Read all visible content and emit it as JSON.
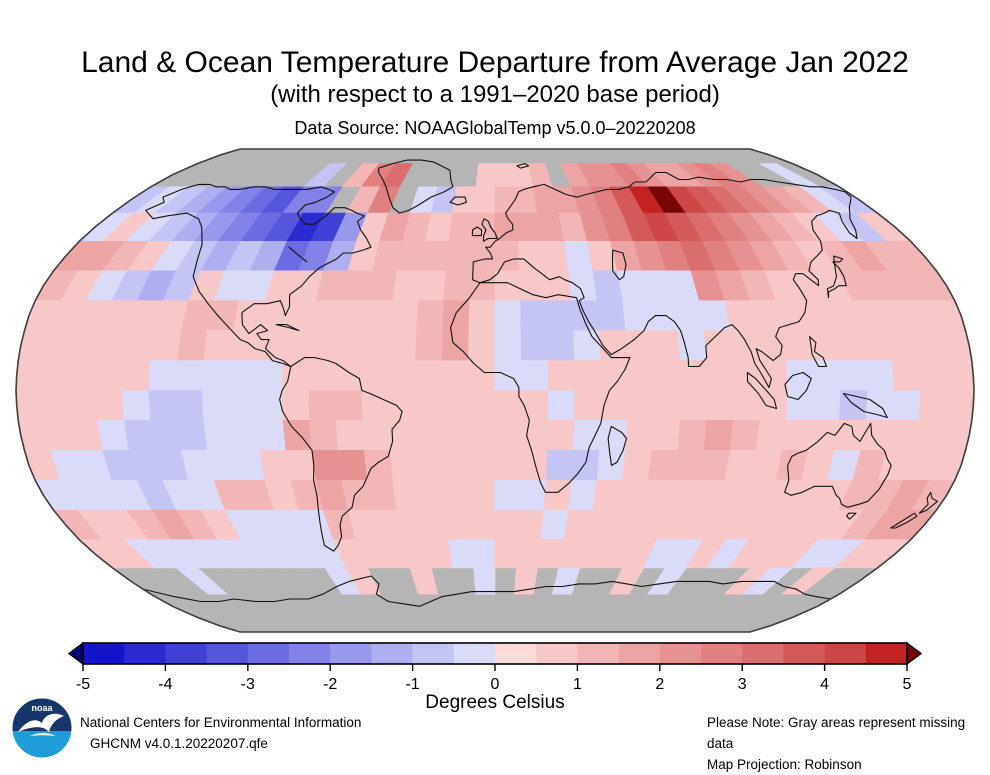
{
  "header": {
    "title": "Land & Ocean Temperature Departure from Average Jan 2022",
    "subtitle": "(with respect to a 1991–2020 base period)",
    "datasource": "Data Source: NOAAGlobalTemp v5.0.0–20220208"
  },
  "colorbar": {
    "label": "Degrees Celsius",
    "ticks": [
      "-5",
      "-4",
      "-3",
      "-2",
      "-1",
      "0",
      "1",
      "2",
      "3",
      "4",
      "5"
    ],
    "tick_values": [
      -5,
      -4,
      -3,
      -2,
      -1,
      0,
      1,
      2,
      3,
      4,
      5
    ],
    "segments": [
      "#1414c8",
      "#2a2ad0",
      "#4040d6",
      "#5656dc",
      "#6c6ce2",
      "#8282e8",
      "#9898ec",
      "#aeaef1",
      "#c4c4f5",
      "#dadaf9",
      "#fbdada",
      "#f8c8c8",
      "#f3b6b6",
      "#eda4a4",
      "#e79292",
      "#e18080",
      "#da6d6d",
      "#d45a5a",
      "#cd4747",
      "#c32222"
    ],
    "left_arrow": "#000078",
    "right_arrow": "#780606"
  },
  "map": {
    "missing_color": "#b5b5b5",
    "outline_color": "#3c3c3c",
    "coast_color": "#111111"
  },
  "footer": {
    "org": "National Centers for Environmental Information",
    "dataset": "GHCNM v4.0.1.20220207.qfe",
    "note": "Please Note: Gray areas represent missing data",
    "projection": "Map Projection: Robinson",
    "logo": {
      "text": "noaa",
      "top_color": "#16356b",
      "bottom_color": "#1e9cd8"
    }
  },
  "chart_data": {
    "type": "heatmap",
    "title": "Land & Ocean Temperature Departure from Average Jan 2022",
    "subtitle": "(with respect to a 1991–2020 base period)",
    "units": "Degrees Celsius",
    "projection": "Robinson",
    "legend_position": "bottom",
    "colorscale": {
      "min": -5,
      "max": 5,
      "step": 0.5,
      "missing": "gray"
    },
    "lat_centers": [
      85,
      75,
      65,
      55,
      45,
      35,
      25,
      15,
      5,
      -5,
      -15,
      -25,
      -35,
      -45,
      -55,
      -65,
      -75,
      -85
    ],
    "lon_start": -180,
    "cell_deg": 10,
    "values": [
      [
        null,
        null,
        null,
        null,
        null,
        null,
        null,
        null,
        null,
        null,
        null,
        null,
        null,
        null,
        null,
        null,
        null,
        null,
        null,
        null,
        null,
        null,
        null,
        null,
        null,
        null,
        null,
        null,
        null,
        null,
        null,
        null,
        null,
        null,
        null,
        null
      ],
      [
        null,
        null,
        null,
        null,
        null,
        null,
        null,
        null,
        -1,
        null,
        1,
        2.5,
        3,
        null,
        null,
        null,
        null,
        0.5,
        0.5,
        0.5,
        1,
        null,
        1.5,
        2,
        2,
        2.5,
        2,
        1.5,
        1.5,
        2,
        2.5,
        2,
        null,
        null,
        -0.5,
        null
      ],
      [
        -1,
        -0.5,
        -1,
        -1.5,
        -2,
        -2.5,
        -3,
        -3.5,
        -2.5,
        -2.5,
        null,
        1,
        2.5,
        null,
        -0.5,
        -1,
        0.5,
        0.5,
        1,
        1,
        1.5,
        1.5,
        2,
        2.5,
        3.5,
        4.5,
        5.5,
        4,
        3.5,
        3,
        2.5,
        2,
        1.5,
        1,
        -0.5,
        -1
      ],
      [
        -0.5,
        0.5,
        -0.5,
        -1,
        -1.5,
        -2,
        -2.5,
        -3,
        -3.5,
        -4.5,
        -4,
        -2,
        0.5,
        1.5,
        1,
        0.5,
        1,
        1,
        1.5,
        1.5,
        1.5,
        1,
        2,
        2.5,
        3.5,
        4,
        3.5,
        3,
        2.5,
        2,
        1.5,
        1,
        0.5,
        -0.5,
        -1,
        0.5
      ],
      [
        1.5,
        1.5,
        1,
        0.5,
        -0.5,
        -1,
        -1.5,
        -1,
        -1.5,
        -3,
        -2.5,
        -1.5,
        0.5,
        1,
        1,
        1,
        1,
        1,
        1,
        0.5,
        0.5,
        -0.5,
        0.5,
        1.5,
        2,
        2.5,
        3,
        2.5,
        2,
        1.5,
        1,
        0.5,
        1,
        1.5,
        1,
        1
      ],
      [
        1,
        0.5,
        -0.5,
        -1,
        -1.5,
        -1,
        0.5,
        -0.5,
        -0.5,
        0.5,
        0.5,
        1,
        1,
        1,
        0.5,
        0.5,
        1,
        1,
        0.5,
        0.5,
        0.5,
        -0.5,
        -1,
        -0.5,
        -0.5,
        -0.5,
        2,
        1.5,
        1,
        0.5,
        0.5,
        0.5,
        1,
        1,
        1,
        1
      ],
      [
        0.5,
        0.5,
        0.5,
        0.5,
        0.5,
        0.5,
        1,
        1,
        0.5,
        0.5,
        0.5,
        0.5,
        0.5,
        0.5,
        0.5,
        1,
        1.5,
        0.5,
        -0.5,
        -1,
        -1,
        -1,
        -1,
        -0.5,
        -0.5,
        -0.5,
        -0.5,
        0.5,
        0.5,
        0.5,
        0.5,
        0.5,
        0.5,
        0.5,
        0.5,
        0.5
      ],
      [
        0.5,
        0.5,
        0.5,
        0.5,
        0.5,
        0.5,
        1,
        0.5,
        0.5,
        0.5,
        0.5,
        0.5,
        0.5,
        0.5,
        0.5,
        1,
        1.5,
        0.5,
        -0.5,
        -1,
        -1,
        -0.5,
        0.5,
        0.5,
        0.5,
        -0.5,
        0.5,
        0.5,
        0.5,
        0.5,
        0.5,
        0.5,
        0.5,
        0.5,
        0.5,
        0.5
      ],
      [
        0.5,
        0.5,
        0.5,
        0.5,
        0.5,
        -0.5,
        -0.5,
        -0.5,
        -0.5,
        -0.5,
        0.5,
        0.5,
        0.5,
        0.5,
        0.5,
        0.5,
        0.5,
        0.5,
        -0.5,
        -0.5,
        0.5,
        0.5,
        0.5,
        0.5,
        0.5,
        0.5,
        0.5,
        0.5,
        0.5,
        -0.5,
        -0.5,
        -0.5,
        -0.5,
        0.5,
        0.5,
        0.5
      ],
      [
        0.5,
        0.5,
        0.5,
        0.5,
        -0.5,
        -1,
        -1,
        -0.5,
        -0.5,
        -0.5,
        0.5,
        1,
        1,
        0.5,
        0.5,
        0.5,
        0.5,
        0.5,
        0.5,
        0.5,
        -0.5,
        0.5,
        0.5,
        0.5,
        0.5,
        0.5,
        0.5,
        0.5,
        0.5,
        -0.5,
        -0.5,
        -1,
        -0.5,
        -0.5,
        0.5,
        0.5
      ],
      [
        0.5,
        0.5,
        0.5,
        -0.5,
        -1,
        -1,
        -1,
        -0.5,
        -0.5,
        -0.5,
        1.5,
        1,
        0.5,
        0.5,
        0.5,
        0.5,
        0.5,
        0.5,
        0.5,
        0.5,
        0.5,
        -0.5,
        -0.5,
        0.5,
        0.5,
        1,
        1.5,
        1,
        0.5,
        0.5,
        0.5,
        0.5,
        0.5,
        0.5,
        0.5,
        0.5
      ],
      [
        0.5,
        -0.5,
        -0.5,
        -1,
        -1,
        -1,
        -0.5,
        -0.5,
        -0.5,
        0.5,
        0.5,
        2,
        2,
        1,
        0.5,
        0.5,
        0.5,
        0.5,
        0.5,
        0.5,
        -1,
        -1,
        -0.5,
        0.5,
        1,
        1,
        1,
        0.5,
        0.5,
        1,
        0.5,
        -0.5,
        1,
        0.5,
        0.5,
        0.5
      ],
      [
        -0.5,
        -0.5,
        -0.5,
        -0.5,
        -1,
        -0.5,
        -0.5,
        1,
        1,
        0.5,
        1,
        1.5,
        1,
        1,
        0.5,
        0.5,
        0.5,
        0.5,
        -0.5,
        -0.5,
        0.5,
        -0.5,
        0.5,
        0.5,
        0.5,
        0.5,
        0.5,
        0.5,
        0.5,
        0.5,
        0.5,
        0.5,
        1,
        1,
        1.5,
        1
      ],
      [
        1,
        0.5,
        0.5,
        1,
        1.5,
        1,
        0.5,
        -0.5,
        -0.5,
        -0.5,
        -0.5,
        1,
        0.5,
        0.5,
        0.5,
        0.5,
        0.5,
        0.5,
        0.5,
        0.5,
        -0.5,
        0.5,
        0.5,
        0.5,
        0.5,
        0.5,
        0.5,
        0.5,
        0.5,
        0.5,
        0.5,
        0.5,
        0.5,
        1,
        1.5,
        1.5
      ],
      [
        0.5,
        0.5,
        -0.5,
        -0.5,
        -0.5,
        -0.5,
        -0.5,
        -0.5,
        -0.5,
        -0.5,
        -0.5,
        0.5,
        0.5,
        0.5,
        0.5,
        0.5,
        -0.5,
        -0.5,
        0.5,
        0.5,
        0.5,
        0.5,
        0.5,
        0.5,
        0.5,
        -0.5,
        -0.5,
        0.5,
        -0.5,
        0.5,
        0.5,
        0.5,
        -0.5,
        -0.5,
        0.5,
        0.5
      ],
      [
        null,
        null,
        null,
        -0.5,
        null,
        null,
        null,
        null,
        null,
        null,
        -0.5,
        0.5,
        null,
        null,
        0.5,
        null,
        null,
        -0.5,
        null,
        0.5,
        null,
        -0.5,
        null,
        null,
        0.5,
        null,
        -0.5,
        null,
        null,
        null,
        0.5,
        -0.5,
        null,
        0.5,
        null,
        null
      ],
      [
        null,
        null,
        null,
        null,
        null,
        null,
        null,
        null,
        null,
        null,
        null,
        null,
        null,
        null,
        null,
        null,
        null,
        null,
        null,
        null,
        null,
        null,
        null,
        null,
        null,
        null,
        null,
        null,
        null,
        null,
        null,
        null,
        null,
        null,
        null,
        null
      ],
      [
        null,
        null,
        null,
        null,
        null,
        null,
        null,
        null,
        null,
        null,
        null,
        null,
        null,
        null,
        null,
        null,
        null,
        null,
        null,
        null,
        null,
        null,
        null,
        null,
        null,
        null,
        null,
        null,
        null,
        null,
        null,
        null,
        null,
        null,
        null,
        null
      ]
    ]
  }
}
